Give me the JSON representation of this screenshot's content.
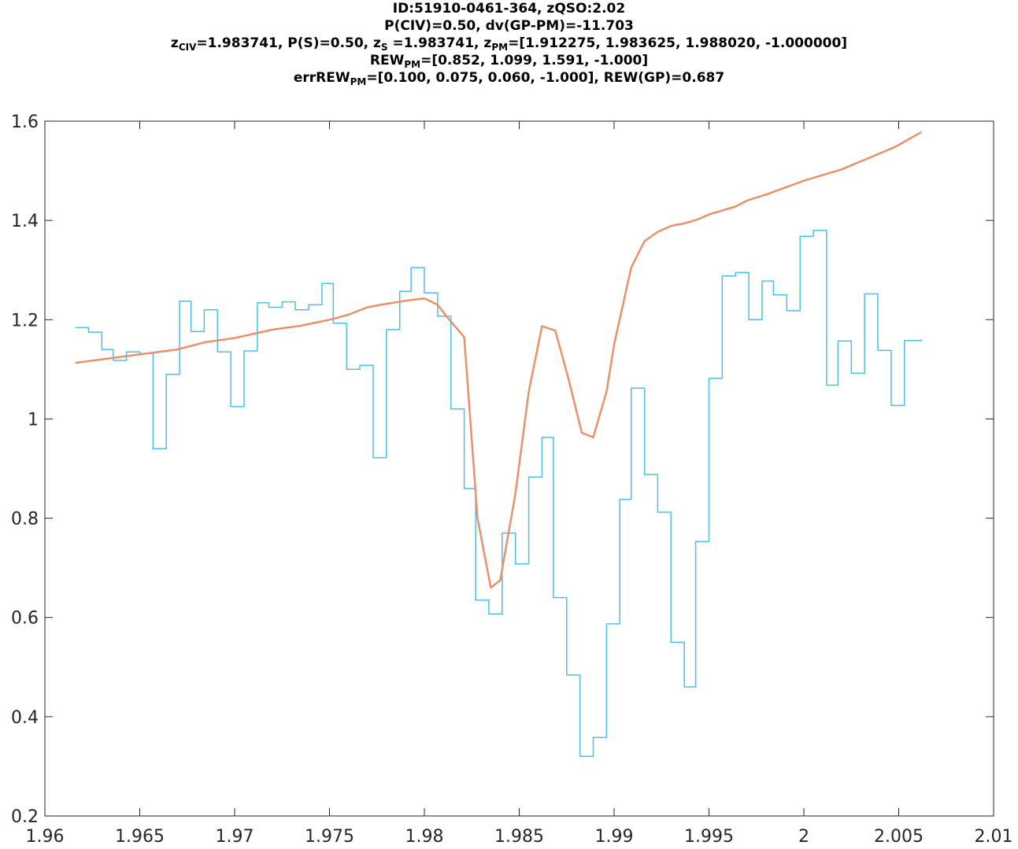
{
  "title": {
    "line1": "ID:51910-0461-364, zQSO:2.02",
    "line2": "P(CIV)=0.50, dv(GP-PM)=-11.703",
    "line3": {
      "p1": "z",
      "s1": "CIV",
      "p2": "=1.983741, P(S)=0.50, z",
      "s2": "S",
      "p3": " =1.983741, z",
      "s3": "PM",
      "p4": "=[1.912275, 1.983625, 1.988020, -1.000000]"
    },
    "line4": {
      "p1": "REW",
      "s1": "PM",
      "p2": "=[0.852, 1.099, 1.591, -1.000]"
    },
    "line5": {
      "p1": "errREW",
      "s1": "PM",
      "p2": "=[0.100, 0.075, 0.060, -1.000], REW(GP)=0.687"
    }
  },
  "colors": {
    "observed": "#4DBEEE",
    "model": "#E8916B",
    "axis": "#262626"
  },
  "chart_data": {
    "type": "line",
    "xlim": [
      1.96,
      2.01
    ],
    "ylim": [
      0.2,
      1.6
    ],
    "xticks": [
      "1.96",
      "1.965",
      "1.97",
      "1.975",
      "1.98",
      "1.985",
      "1.99",
      "1.995",
      "2",
      "2.005",
      "2.01"
    ],
    "yticks": [
      "0.2",
      "0.4",
      "0.6",
      "0.8",
      "1",
      "1.2",
      "1.4",
      "1.6"
    ],
    "grid": false,
    "series": [
      {
        "style": "stairs",
        "color": "#4DBEEE",
        "x": [
          1.9616,
          1.9623,
          1.963,
          1.9636,
          1.9643,
          1.965,
          1.9657,
          1.9664,
          1.9671,
          1.9677,
          1.9684,
          1.9691,
          1.9698,
          1.9705,
          1.9712,
          1.9718,
          1.9725,
          1.9732,
          1.9739,
          1.9746,
          1.9752,
          1.9759,
          1.9766,
          1.9773,
          1.978,
          1.9787,
          1.9793,
          1.98,
          1.9807,
          1.9814,
          1.9821,
          1.9827,
          1.9834,
          1.9841,
          1.9848,
          1.9855,
          1.9862,
          1.9868,
          1.9875,
          1.9882,
          1.9889,
          1.9896,
          1.9903,
          1.9909,
          1.9916,
          1.9923,
          1.993,
          1.9937,
          1.9943,
          1.995,
          1.9957,
          1.9964,
          1.9971,
          1.9978,
          1.9984,
          1.9991,
          1.9998,
          2.0005,
          2.0012,
          2.0018,
          2.0025,
          2.0032,
          2.0039,
          2.0046,
          2.0053,
          2.0062
        ],
        "y": [
          1.184,
          1.175,
          1.14,
          1.118,
          1.135,
          1.132,
          0.94,
          1.09,
          1.237,
          1.176,
          1.22,
          1.135,
          1.025,
          1.137,
          1.234,
          1.225,
          1.236,
          1.22,
          1.23,
          1.273,
          1.193,
          1.1,
          1.108,
          0.922,
          1.18,
          1.257,
          1.305,
          1.254,
          1.207,
          1.02,
          0.86,
          0.635,
          0.607,
          0.77,
          0.708,
          0.883,
          0.963,
          0.64,
          0.484,
          0.32,
          0.358,
          0.587,
          0.838,
          1.062,
          0.888,
          0.812,
          0.55,
          0.46,
          0.753,
          1.082,
          1.288,
          1.295,
          1.2,
          1.278,
          1.25,
          1.218,
          1.368,
          1.38,
          1.068,
          1.157,
          1.092,
          1.252,
          1.138,
          1.027,
          1.158,
          1.16
        ]
      },
      {
        "style": "line",
        "color": "#E8916B",
        "x": [
          1.9616,
          1.963,
          1.965,
          1.967,
          1.9685,
          1.97,
          1.972,
          1.9735,
          1.975,
          1.976,
          1.977,
          1.978,
          1.979,
          1.98,
          1.9807,
          1.9812,
          1.9821,
          1.9828,
          1.9835,
          1.984,
          1.9848,
          1.9855,
          1.9862,
          1.9869,
          1.9876,
          1.9883,
          1.9889,
          1.9896,
          1.99,
          1.9909,
          1.9916,
          1.9923,
          1.993,
          1.9937,
          1.9944,
          1.995,
          1.9957,
          1.9964,
          1.997,
          1.998,
          2.0,
          2.002,
          2.004,
          2.0048,
          2.0062
        ],
        "y": [
          1.113,
          1.12,
          1.13,
          1.14,
          1.155,
          1.163,
          1.18,
          1.188,
          1.2,
          1.21,
          1.225,
          1.232,
          1.238,
          1.243,
          1.23,
          1.205,
          1.165,
          0.8,
          0.66,
          0.675,
          0.85,
          1.055,
          1.187,
          1.178,
          1.08,
          0.972,
          0.963,
          1.055,
          1.15,
          1.305,
          1.358,
          1.377,
          1.389,
          1.394,
          1.402,
          1.412,
          1.42,
          1.428,
          1.44,
          1.452,
          1.48,
          1.503,
          1.535,
          1.548,
          1.578
        ]
      }
    ]
  }
}
